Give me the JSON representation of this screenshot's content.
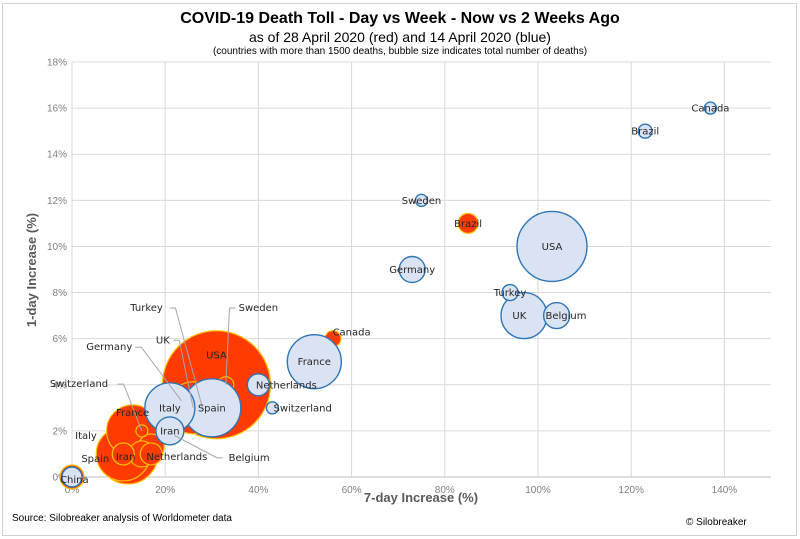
{
  "chart_data": {
    "type": "scatter",
    "subtype": "bubble",
    "title": "COVID-19 Death Toll - Day vs Week - Now vs 2 Weeks Ago",
    "subtitle": "as of 28 April 2020 (red) and 14 April 2020 (blue)",
    "note": "(countries with more than 1500 deaths, bubble size indicates total number of deaths)",
    "xlabel": "7-day Increase (%)",
    "ylabel": "1-day Increase (%)",
    "xlim": [
      0,
      150
    ],
    "ylim": [
      0,
      18
    ],
    "xticks": [
      0,
      20,
      40,
      60,
      80,
      100,
      120,
      140
    ],
    "yticks": [
      0,
      2,
      4,
      6,
      8,
      10,
      12,
      14,
      16,
      18
    ],
    "xtick_labels": [
      "0%",
      "20%",
      "40%",
      "60%",
      "80%",
      "100%",
      "120%",
      "140%"
    ],
    "ytick_labels": [
      "0%",
      "2%",
      "4%",
      "6%",
      "8%",
      "10%",
      "12%",
      "14%",
      "16%",
      "18%"
    ],
    "grid": true,
    "size_note": "relative bubble size (area ~ total deaths)",
    "series": [
      {
        "name": "28 April 2020",
        "color": "#ff3b00",
        "edge": "#ffc000",
        "points": [
          {
            "country": "USA",
            "x": 31,
            "y": 4,
            "size": 54
          },
          {
            "country": "Italy",
            "x": 12,
            "y": 1,
            "size": 30
          },
          {
            "country": "Spain",
            "x": 11,
            "y": 1,
            "size": 27
          },
          {
            "country": "France",
            "x": 13,
            "y": 2,
            "size": 26
          },
          {
            "country": "UK",
            "x": 26,
            "y": 3,
            "size": 26
          },
          {
            "country": "Belgium",
            "x": 17,
            "y": 1.3,
            "size": 13
          },
          {
            "country": "Iran",
            "x": 11,
            "y": 1,
            "size": 11
          },
          {
            "country": "Germany",
            "x": 15,
            "y": 1,
            "size": 13
          },
          {
            "country": "Netherlands",
            "x": 17,
            "y": 1,
            "size": 11
          },
          {
            "country": "Brazil",
            "x": 85,
            "y": 11,
            "size": 10
          },
          {
            "country": "Turkey",
            "x": 28,
            "y": 3,
            "size": 8
          },
          {
            "country": "Canada",
            "x": 56,
            "y": 6,
            "size": 8
          },
          {
            "country": "Sweden",
            "x": 33,
            "y": 4,
            "size": 8
          },
          {
            "country": "Switzerland",
            "x": 15,
            "y": 2,
            "size": 6
          },
          {
            "country": "China",
            "x": 0,
            "y": 0,
            "size": 12
          }
        ]
      },
      {
        "name": "14 April 2020",
        "color": "#dae3f3",
        "edge": "#2e75b6",
        "points": [
          {
            "country": "USA",
            "x": 103,
            "y": 10,
            "size": 35
          },
          {
            "country": "Italy",
            "x": 21,
            "y": 3,
            "size": 25
          },
          {
            "country": "Spain",
            "x": 30,
            "y": 3,
            "size": 29
          },
          {
            "country": "France",
            "x": 52,
            "y": 5,
            "size": 27
          },
          {
            "country": "UK",
            "x": 97,
            "y": 7,
            "size": 23
          },
          {
            "country": "Belgium",
            "x": 104,
            "y": 7,
            "size": 13
          },
          {
            "country": "Iran",
            "x": 21,
            "y": 2,
            "size": 14
          },
          {
            "country": "Germany",
            "x": 73,
            "y": 9,
            "size": 13
          },
          {
            "country": "Netherlands",
            "x": 40,
            "y": 4,
            "size": 11
          },
          {
            "country": "Brazil",
            "x": 123,
            "y": 15,
            "size": 7
          },
          {
            "country": "Turkey",
            "x": 94,
            "y": 8,
            "size": 8
          },
          {
            "country": "Canada",
            "x": 137,
            "y": 16,
            "size": 6
          },
          {
            "country": "Sweden",
            "x": 75,
            "y": 12,
            "size": 6
          },
          {
            "country": "Switzerland",
            "x": 43,
            "y": 3,
            "size": 6
          },
          {
            "country": "China",
            "x": 0,
            "y": 0,
            "size": 10
          }
        ]
      }
    ],
    "labels": [
      {
        "text": "Canada",
        "series": 1,
        "country": "Canada",
        "at": [
          137,
          16
        ]
      },
      {
        "text": "Brazil",
        "series": 1,
        "country": "Brazil",
        "at": [
          123,
          15
        ]
      },
      {
        "text": "Sweden",
        "series": 1,
        "country": "Sweden",
        "at": [
          75,
          12
        ]
      },
      {
        "text": "Brazil",
        "series": 0,
        "country": "Brazil",
        "at": [
          85,
          11
        ]
      },
      {
        "text": "USA",
        "series": 1,
        "country": "USA",
        "at": [
          103,
          10
        ]
      },
      {
        "text": "Germany",
        "series": 1,
        "country": "Germany",
        "at": [
          73,
          9
        ]
      },
      {
        "text": "Turkey",
        "series": 1,
        "country": "Turkey",
        "at": [
          94,
          8
        ]
      },
      {
        "text": "UK",
        "series": 1,
        "country": "UK",
        "at": [
          96,
          7
        ]
      },
      {
        "text": "Belgium",
        "series": 1,
        "country": "Belgium",
        "at": [
          106,
          7
        ]
      },
      {
        "text": "Canada",
        "series": 0,
        "country": "Canada",
        "at": [
          60,
          6.3
        ]
      },
      {
        "text": "France",
        "series": 1,
        "country": "France",
        "at": [
          52,
          5
        ]
      },
      {
        "text": "USA",
        "series": 0,
        "country": "USA",
        "at": [
          31,
          5.3
        ]
      },
      {
        "text": "Netherlands",
        "series": 1,
        "country": "Netherlands",
        "at": [
          46,
          4
        ]
      },
      {
        "text": "Switzerland",
        "series": 1,
        "country": "Switzerland",
        "at": [
          49.5,
          3
        ]
      },
      {
        "text": "Italy",
        "series": 1,
        "country": "Italy",
        "at": [
          21,
          3
        ]
      },
      {
        "text": "Spain",
        "series": 1,
        "country": "Spain",
        "at": [
          30,
          3
        ]
      },
      {
        "text": "Iran",
        "series": 1,
        "country": "Iran",
        "at": [
          21,
          2
        ]
      },
      {
        "text": "France",
        "series": 0,
        "country": "France",
        "at": [
          13,
          2.8
        ]
      },
      {
        "text": "Italy",
        "series": 0,
        "country": "Italy",
        "at": [
          3,
          1.8
        ]
      },
      {
        "text": "Spain",
        "series": 0,
        "country": "Spain",
        "at": [
          5,
          0.8
        ]
      },
      {
        "text": "Iran",
        "series": 0,
        "country": "Iran",
        "at": [
          11.5,
          0.9
        ]
      },
      {
        "text": "Netherlands",
        "series": 0,
        "country": "Netherlands",
        "at": [
          22.5,
          0.9
        ]
      },
      {
        "text": "China",
        "series": 1,
        "country": "China",
        "at": [
          0.5,
          -0.1
        ]
      }
    ],
    "callouts": [
      {
        "text": "Turkey",
        "label_at": [
          16,
          7.2
        ],
        "target": [
          28,
          3
        ],
        "series": 0
      },
      {
        "text": "Sweden",
        "label_at": [
          40,
          7.2
        ],
        "target": [
          33,
          4
        ],
        "series": 0
      },
      {
        "text": "UK",
        "label_at": [
          19.5,
          5.8
        ],
        "target": [
          26,
          3
        ],
        "series": 0
      },
      {
        "text": "Germany",
        "label_at": [
          8,
          5.5
        ],
        "target": [
          23.5,
          3.3
        ],
        "series": 0
      },
      {
        "text": "Switzerland",
        "label_at": [
          1.5,
          3.9
        ],
        "target": [
          15,
          2
        ],
        "series": 0
      },
      {
        "text": "Belgium",
        "label_at": [
          38,
          0.7
        ],
        "target": [
          22,
          1.8
        ],
        "series": 0
      }
    ]
  },
  "footer": {
    "source": "Source: Silobreaker analysis of Worldometer data",
    "copyright": "© Silobreaker"
  }
}
